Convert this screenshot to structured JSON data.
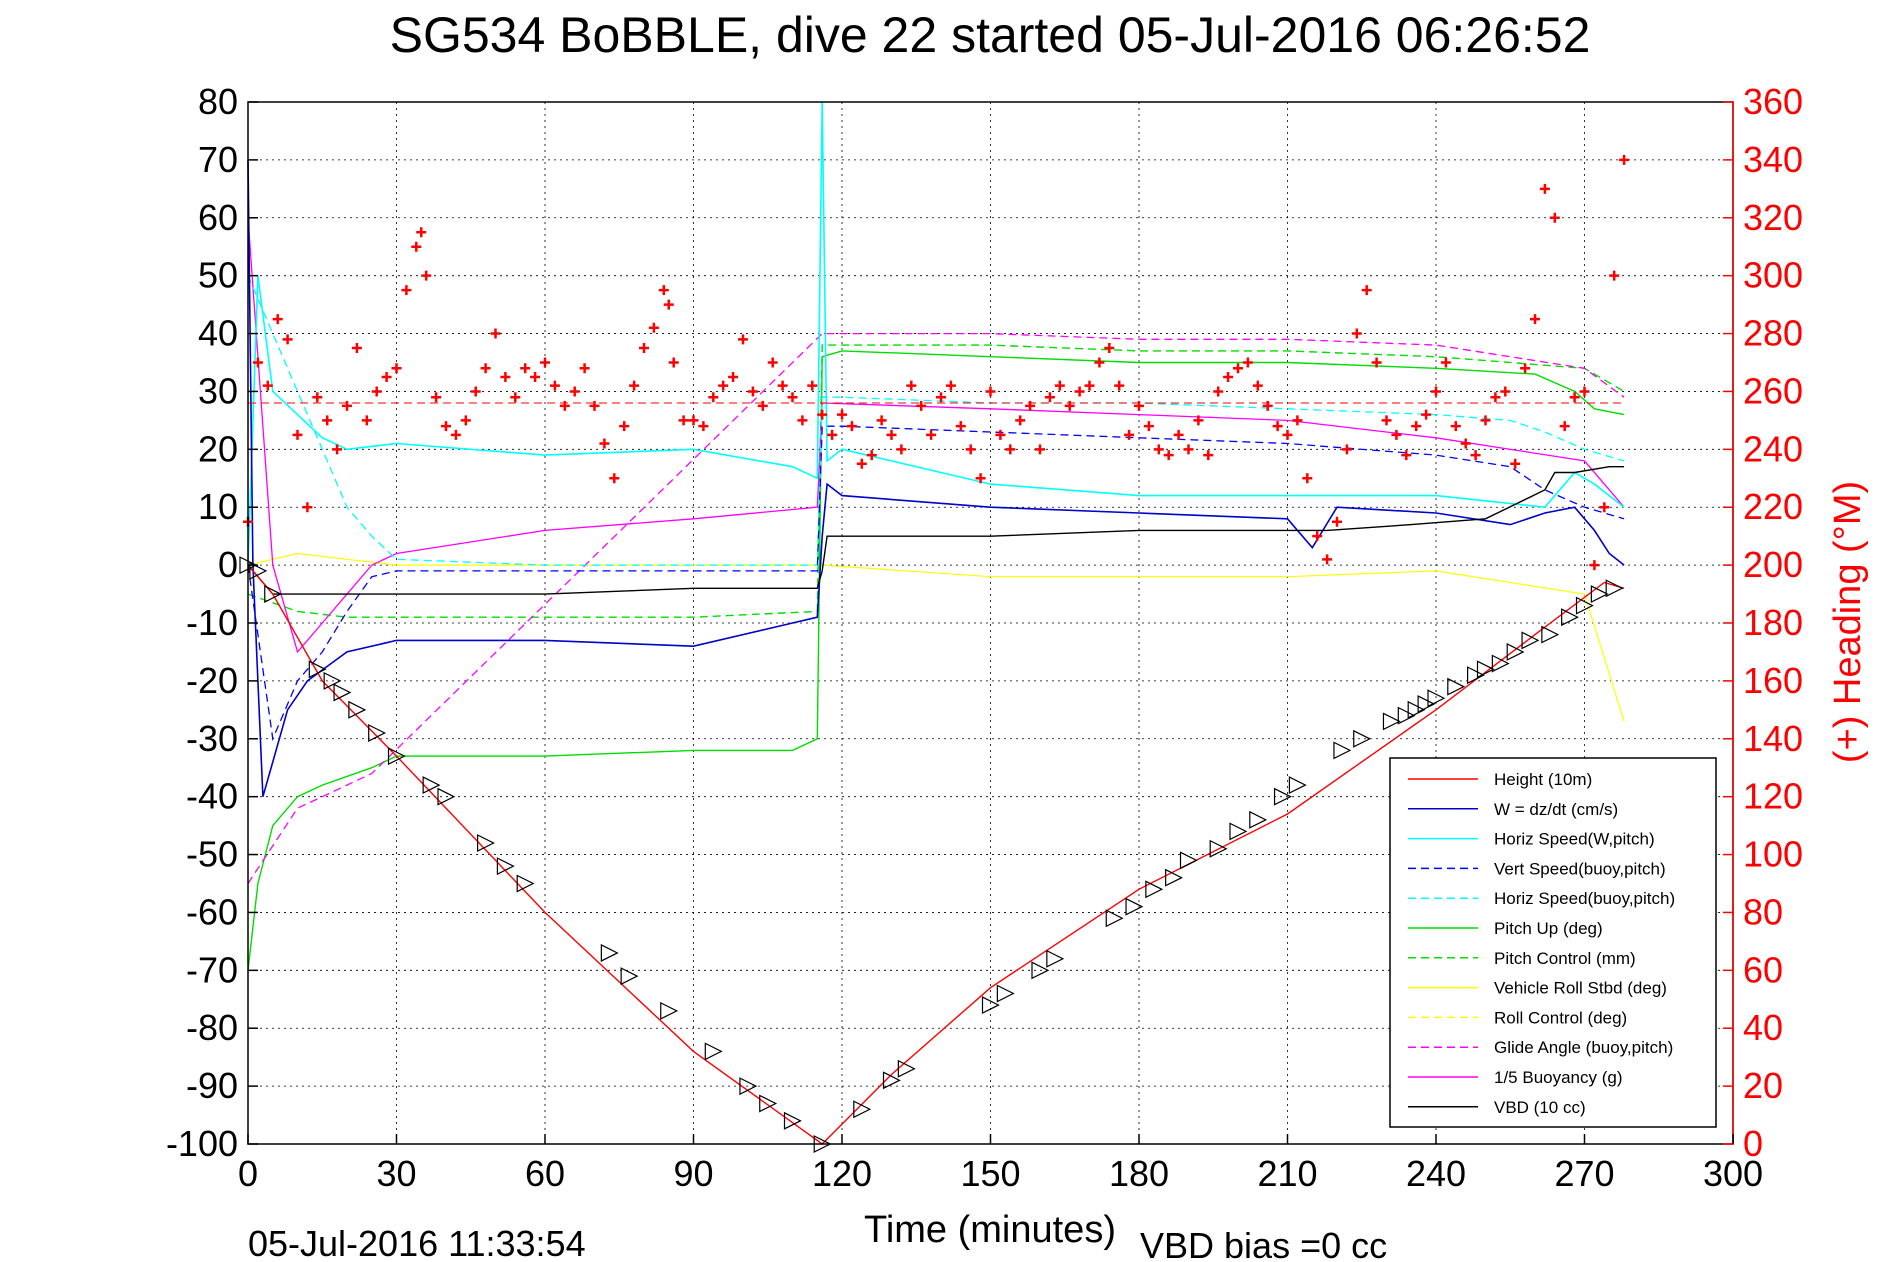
{
  "chart_data": {
    "type": "line",
    "title": "SG534 BoBBLE, dive 22 started 05-Jul-2016 06:26:52",
    "xlabel": "Time (minutes)",
    "ylabel": "",
    "y2label": "(+) Heading (°M)",
    "xlim": [
      0,
      300
    ],
    "ylim": [
      -100,
      80
    ],
    "y2lim": [
      0,
      360
    ],
    "xticks": [
      "0",
      "30",
      "60",
      "90",
      "120",
      "150",
      "180",
      "210",
      "240",
      "270",
      "300"
    ],
    "yticks": [
      "80",
      "70",
      "60",
      "50",
      "40",
      "30",
      "20",
      "10",
      "0",
      "-10",
      "-20",
      "-30",
      "-40",
      "-50",
      "-60",
      "-70",
      "-80",
      "-90",
      "-100"
    ],
    "y2ticks": [
      "360",
      "340",
      "320",
      "300",
      "280",
      "260",
      "240",
      "220",
      "200",
      "180",
      "160",
      "140",
      "120",
      "100",
      "80",
      "60",
      "40",
      "20",
      "0"
    ],
    "grid": true,
    "legend_position": "bottom-right",
    "footer_left": "05-Jul-2016 11:33:54",
    "footer_right": "VBD bias =0 cc",
    "colors": {
      "height": "#ff0000",
      "w": "#0000cc",
      "horiz_w": "#00ffff",
      "vert_buoy": "#0000ff",
      "horiz_buoy": "#00ffff",
      "pitch": "#00dd00",
      "pitch_ctrl": "#00dd00",
      "roll": "#ffff00",
      "roll_ctrl": "#ffff00",
      "glide": "#ff00ff",
      "buoyancy": "#ff00ff",
      "vbd": "#000000",
      "heading": "#ff0000",
      "markers": "#000000"
    },
    "legend": [
      {
        "label": "Height (10m)",
        "color": "#ff0000",
        "dash": false
      },
      {
        "label": "W = dz/dt (cm/s)",
        "color": "#0000cc",
        "dash": false
      },
      {
        "label": "Horiz Speed(W,pitch)",
        "color": "#00ffff",
        "dash": false
      },
      {
        "label": "Vert Speed(buoy,pitch)",
        "color": "#0000ff",
        "dash": true
      },
      {
        "label": "Horiz Speed(buoy,pitch)",
        "color": "#00ffff",
        "dash": true
      },
      {
        "label": "Pitch Up (deg)",
        "color": "#00dd00",
        "dash": false
      },
      {
        "label": "Pitch Control (mm)",
        "color": "#00dd00",
        "dash": true
      },
      {
        "label": "Vehicle Roll Stbd (deg)",
        "color": "#ffff00",
        "dash": false
      },
      {
        "label": "Roll Control (deg)",
        "color": "#ffff00",
        "dash": true
      },
      {
        "label": "Glide Angle (buoy,pitch)",
        "color": "#ff00ff",
        "dash": true
      },
      {
        "label": "1/5 Buoyancy (g)",
        "color": "#ff00ff",
        "dash": false
      },
      {
        "label": "VBD (10 cc)",
        "color": "#000000",
        "dash": false
      }
    ],
    "series": {
      "height": {
        "x": [
          0,
          5,
          15,
          30,
          60,
          90,
          116,
          130,
          150,
          180,
          210,
          240,
          260,
          274,
          278
        ],
        "y": [
          0,
          -5,
          -20,
          -33,
          -60,
          -84,
          -100,
          -88,
          -73,
          -56,
          -43,
          -25,
          -12,
          -3,
          -4
        ]
      },
      "w": {
        "x": [
          0,
          1,
          3,
          8,
          12,
          20,
          30,
          60,
          90,
          110,
          115,
          116,
          117,
          120,
          150,
          180,
          210,
          215,
          220,
          240,
          255,
          262,
          268,
          272,
          275,
          278
        ],
        "y": [
          70,
          0,
          -40,
          -25,
          -20,
          -15,
          -13,
          -13,
          -14,
          -10,
          -9,
          5,
          14,
          12,
          10,
          9,
          8,
          3,
          10,
          9,
          7,
          9,
          10,
          6,
          2,
          0
        ]
      },
      "horiz_w": {
        "x": [
          0,
          2,
          5,
          10,
          15,
          20,
          30,
          60,
          90,
          110,
          115,
          116,
          117,
          120,
          150,
          180,
          210,
          240,
          262,
          268,
          272,
          278
        ],
        "y": [
          0,
          50,
          30,
          26,
          22,
          20,
          21,
          19,
          20,
          17,
          15,
          80,
          18,
          20,
          14,
          12,
          12,
          12,
          10,
          16,
          14,
          10
        ]
      },
      "vert_buoy": {
        "x": [
          0,
          5,
          10,
          15,
          20,
          25,
          30,
          60,
          90,
          115,
          116,
          120,
          150,
          180,
          210,
          240,
          255,
          262,
          270,
          278
        ],
        "y": [
          0,
          -30,
          -20,
          -15,
          -8,
          -2,
          -1,
          -1,
          -1,
          -1,
          24,
          24,
          23,
          22,
          21,
          19,
          17,
          13,
          10,
          8
        ]
      },
      "horiz_buoy": {
        "x": [
          0,
          5,
          10,
          15,
          20,
          25,
          30,
          60,
          90,
          115,
          116,
          120,
          150,
          180,
          210,
          240,
          255,
          262,
          270,
          278
        ],
        "y": [
          50,
          40,
          30,
          20,
          10,
          5,
          1,
          0,
          0,
          0,
          29,
          29,
          28,
          28,
          27,
          26,
          25,
          23,
          20,
          18
        ]
      },
      "pitch": {
        "x": [
          0,
          2,
          5,
          10,
          15,
          25,
          30,
          60,
          90,
          110,
          115,
          116,
          120,
          150,
          180,
          210,
          240,
          260,
          268,
          272,
          278
        ],
        "y": [
          -70,
          -55,
          -45,
          -40,
          -38,
          -35,
          -33,
          -33,
          -32,
          -32,
          -30,
          36,
          37,
          36,
          35,
          35,
          34,
          33,
          30,
          27,
          26
        ]
      },
      "pitch_ctrl": {
        "x": [
          0,
          10,
          20,
          30,
          60,
          90,
          115,
          116,
          150,
          180,
          210,
          240,
          270,
          278
        ],
        "y": [
          -5,
          -8,
          -9,
          -9,
          -9,
          -9,
          -8,
          38,
          38,
          37,
          37,
          36,
          34,
          30
        ]
      },
      "roll": {
        "x": [
          0,
          10,
          20,
          30,
          60,
          90,
          115,
          116,
          150,
          180,
          210,
          240,
          270,
          278
        ],
        "y": [
          0,
          2,
          1,
          0,
          0,
          0,
          0,
          0,
          -2,
          -2,
          -2,
          -1,
          -5,
          -27
        ]
      },
      "glide": {
        "x": [
          0,
          10,
          15,
          20,
          25,
          116,
          120,
          150,
          180,
          210,
          240,
          270,
          278
        ],
        "y": [
          -55,
          -42,
          -40,
          -38,
          -36,
          40,
          40,
          40,
          39,
          39,
          38,
          34,
          29
        ]
      },
      "buoyancy": {
        "x": [
          0,
          5,
          10,
          15,
          20,
          25,
          30,
          60,
          90,
          115,
          116,
          150,
          180,
          210,
          240,
          270,
          278
        ],
        "y": [
          60,
          0,
          -15,
          -10,
          -5,
          0,
          2,
          6,
          8,
          10,
          28,
          27,
          26,
          25,
          22,
          18,
          10
        ]
      },
      "vbd": {
        "x": [
          0,
          5,
          10,
          30,
          60,
          90,
          115,
          116,
          117,
          150,
          180,
          210,
          218,
          235,
          250,
          262,
          264,
          268,
          275,
          278
        ],
        "y": [
          0,
          -5,
          -5,
          -5,
          -5,
          -4,
          -4,
          -1,
          5,
          5,
          6,
          6,
          6,
          7,
          8,
          13,
          16,
          16,
          17,
          17
        ]
      }
    },
    "heading_points": {
      "x": [
        0,
        2,
        4,
        6,
        8,
        10,
        12,
        14,
        16,
        18,
        20,
        22,
        24,
        26,
        28,
        30,
        32,
        34,
        35,
        36,
        38,
        40,
        42,
        44,
        46,
        48,
        50,
        52,
        54,
        56,
        58,
        60,
        62,
        64,
        66,
        68,
        70,
        72,
        74,
        76,
        78,
        80,
        82,
        84,
        85,
        86,
        88,
        90,
        92,
        94,
        96,
        98,
        100,
        102,
        104,
        106,
        108,
        110,
        112,
        114,
        116,
        118,
        120,
        122,
        124,
        126,
        128,
        130,
        132,
        134,
        136,
        138,
        140,
        142,
        144,
        146,
        148,
        150,
        152,
        154,
        156,
        158,
        160,
        162,
        164,
        166,
        168,
        170,
        172,
        174,
        176,
        178,
        180,
        182,
        184,
        186,
        188,
        190,
        192,
        194,
        196,
        198,
        200,
        202,
        204,
        206,
        208,
        210,
        212,
        214,
        216,
        218,
        220,
        222,
        224,
        226,
        228,
        230,
        232,
        234,
        236,
        238,
        240,
        242,
        244,
        246,
        248,
        250,
        252,
        254,
        256,
        258,
        260,
        262,
        264,
        266,
        268,
        270,
        272,
        274,
        276,
        278
      ],
      "y": [
        215,
        270,
        262,
        285,
        278,
        245,
        220,
        258,
        250,
        240,
        255,
        275,
        250,
        260,
        265,
        268,
        295,
        310,
        315,
        300,
        258,
        248,
        245,
        250,
        260,
        268,
        280,
        265,
        258,
        268,
        265,
        270,
        262,
        255,
        260,
        268,
        255,
        242,
        230,
        248,
        262,
        275,
        282,
        295,
        290,
        270,
        250,
        250,
        248,
        258,
        262,
        265,
        278,
        260,
        255,
        270,
        262,
        258,
        250,
        262,
        252,
        245,
        252,
        248,
        235,
        238,
        250,
        245,
        240,
        262,
        255,
        245,
        258,
        262,
        248,
        240,
        230,
        260,
        245,
        240,
        250,
        255,
        240,
        258,
        262,
        255,
        260,
        262,
        270,
        275,
        262,
        245,
        255,
        248,
        240,
        238,
        245,
        240,
        250,
        238,
        260,
        265,
        268,
        270,
        262,
        255,
        248,
        245,
        250,
        230,
        210,
        202,
        215,
        240,
        280,
        295,
        270,
        250,
        245,
        238,
        248,
        252,
        260,
        270,
        248,
        242,
        238,
        250,
        258,
        260,
        235,
        268,
        285,
        330,
        320,
        248,
        258,
        260,
        200,
        220,
        300,
        340
      ]
    },
    "depth_markers": {
      "x": [
        0,
        2,
        5,
        14,
        17,
        19,
        22,
        26,
        30,
        37,
        40,
        48,
        52,
        56,
        73,
        77,
        85,
        94,
        101,
        105,
        110,
        116,
        124,
        130,
        133,
        150,
        153,
        160,
        163,
        175,
        179,
        183,
        187,
        190,
        196,
        200,
        204,
        209,
        212,
        221,
        225,
        231,
        234,
        236,
        238,
        240,
        244,
        248,
        250,
        253,
        256,
        259,
        263,
        267,
        270,
        273,
        276
      ],
      "y": [
        0,
        -1,
        -5,
        -18,
        -20,
        -22,
        -25,
        -29,
        -33,
        -38,
        -40,
        -48,
        -52,
        -55,
        -67,
        -71,
        -77,
        -84,
        -90,
        -93,
        -96,
        -100,
        -94,
        -89,
        -87,
        -76,
        -74,
        -70,
        -68,
        -61,
        -59,
        -56,
        -54,
        -51,
        -49,
        -46,
        -44,
        -40,
        -38,
        -32,
        -30,
        -27,
        -26,
        -25,
        -24,
        -23,
        -21,
        -19,
        -18,
        -17,
        -15,
        -13,
        -12,
        -9,
        -7,
        -5,
        -4
      ]
    }
  }
}
